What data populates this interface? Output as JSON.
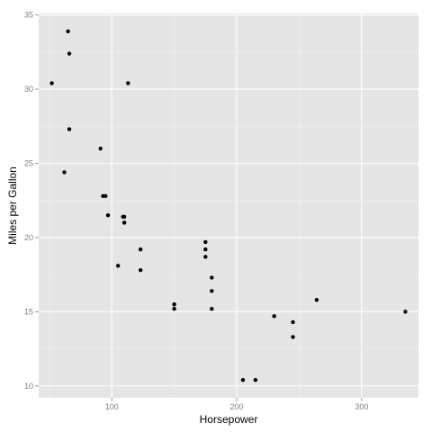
{
  "chart_data": {
    "type": "scatter",
    "title": "",
    "xlabel": "Horsepower",
    "ylabel": "Miles per Gallon",
    "xlim": [
      41.5,
      345.5
    ],
    "ylim": [
      9.2,
      35.1
    ],
    "xticks": [
      100,
      200,
      300
    ],
    "yticks": [
      10,
      15,
      20,
      25,
      30,
      35
    ],
    "grid": true,
    "background": "#e5e5e5",
    "point_color": "#000000",
    "points": [
      {
        "x": 110,
        "y": 21.0
      },
      {
        "x": 110,
        "y": 21.0
      },
      {
        "x": 93,
        "y": 22.8
      },
      {
        "x": 110,
        "y": 21.4
      },
      {
        "x": 175,
        "y": 18.7
      },
      {
        "x": 105,
        "y": 18.1
      },
      {
        "x": 245,
        "y": 14.3
      },
      {
        "x": 62,
        "y": 24.4
      },
      {
        "x": 95,
        "y": 22.8
      },
      {
        "x": 123,
        "y": 19.2
      },
      {
        "x": 123,
        "y": 17.8
      },
      {
        "x": 180,
        "y": 16.4
      },
      {
        "x": 180,
        "y": 17.3
      },
      {
        "x": 180,
        "y": 15.2
      },
      {
        "x": 205,
        "y": 10.4
      },
      {
        "x": 215,
        "y": 10.4
      },
      {
        "x": 230,
        "y": 14.7
      },
      {
        "x": 66,
        "y": 32.4
      },
      {
        "x": 52,
        "y": 30.4
      },
      {
        "x": 65,
        "y": 33.9
      },
      {
        "x": 97,
        "y": 21.5
      },
      {
        "x": 150,
        "y": 15.5
      },
      {
        "x": 150,
        "y": 15.2
      },
      {
        "x": 245,
        "y": 13.3
      },
      {
        "x": 175,
        "y": 19.2
      },
      {
        "x": 66,
        "y": 27.3
      },
      {
        "x": 91,
        "y": 26.0
      },
      {
        "x": 113,
        "y": 30.4
      },
      {
        "x": 264,
        "y": 15.8
      },
      {
        "x": 175,
        "y": 19.7
      },
      {
        "x": 335,
        "y": 15.0
      },
      {
        "x": 109,
        "y": 21.4
      }
    ]
  }
}
